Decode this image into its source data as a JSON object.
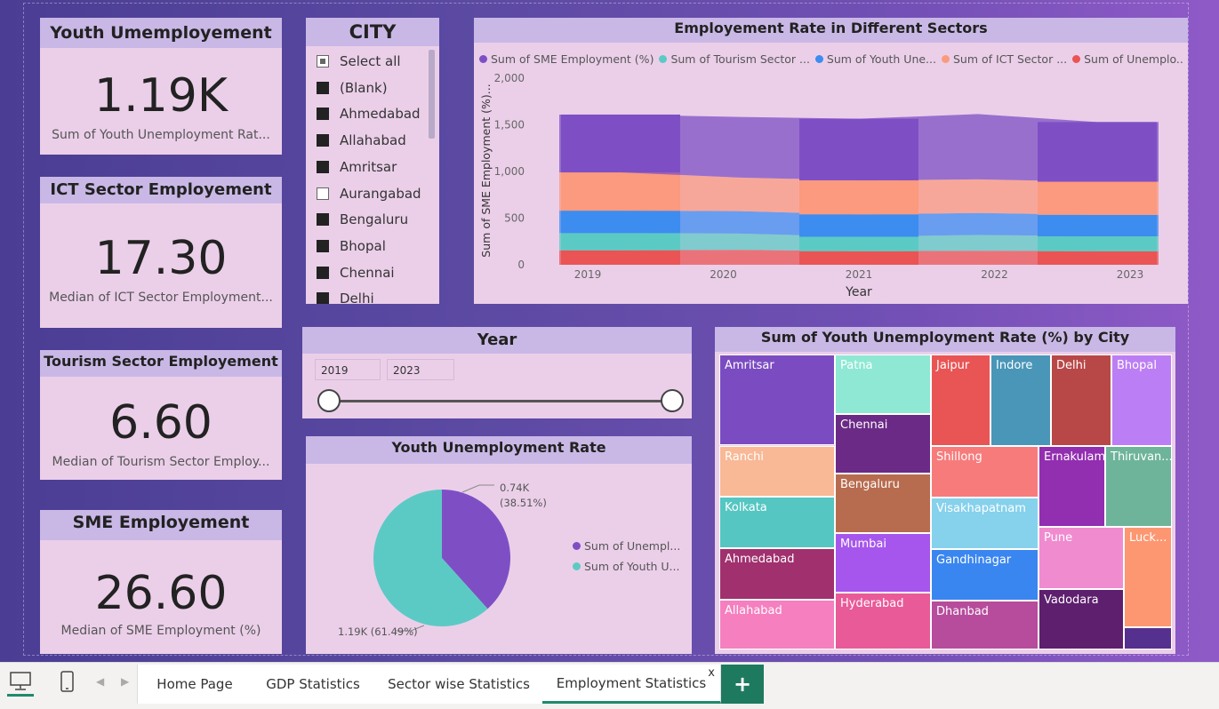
{
  "kpis": [
    {
      "title": "Youth Umemployement",
      "value": "1.19K",
      "subtitle": "Sum of Youth Unemployment Rat..."
    },
    {
      "title": "ICT Sector Employement",
      "value": "17.30",
      "subtitle": "Median of ICT Sector Employment..."
    },
    {
      "title": "Tourism Sector Employement",
      "value": "6.60",
      "subtitle": "Median of Tourism Sector Employ..."
    },
    {
      "title": "SME Employement",
      "value": "26.60",
      "subtitle": "Median of SME Employment (%)"
    }
  ],
  "city_slicer": {
    "title": "CITY",
    "items": [
      {
        "label": "Select all",
        "state": "partial"
      },
      {
        "label": "(Blank)",
        "state": "full"
      },
      {
        "label": "Ahmedabad",
        "state": "full"
      },
      {
        "label": "Allahabad",
        "state": "full"
      },
      {
        "label": "Amritsar",
        "state": "full"
      },
      {
        "label": "Aurangabad",
        "state": "empty"
      },
      {
        "label": "Bengaluru",
        "state": "full"
      },
      {
        "label": "Bhopal",
        "state": "full"
      },
      {
        "label": "Chennai",
        "state": "full"
      },
      {
        "label": "Delhi",
        "state": "full"
      }
    ]
  },
  "year_slicer": {
    "title": "Year",
    "from": "2019",
    "to": "2023"
  },
  "area_chart": {
    "title": "Employement Rate in Different Sectors",
    "legend": [
      {
        "name": "Sum of SME Employment (%)",
        "color": "#7e4fc4"
      },
      {
        "name": "Sum of Tourism Sector ...",
        "color": "#5ccac4"
      },
      {
        "name": "Sum of Youth Une...",
        "color": "#3d8cf0"
      },
      {
        "name": "Sum of ICT Sector ...",
        "color": "#fb9a7e"
      },
      {
        "name": "Sum of Unemplo...",
        "color": "#ea5454"
      }
    ],
    "ylabel": "Sum of SME Employment (%)...",
    "xlabel": "Year",
    "yticks": [
      "0",
      "500",
      "1,000",
      "1,500",
      "2,000"
    ],
    "xticks": [
      "2019",
      "2020",
      "2021",
      "2022",
      "2023"
    ]
  },
  "chart_data": [
    {
      "type": "area",
      "title": "Employement Rate in Different Sectors",
      "xlabel": "Year",
      "ylabel": "Sum of SME Employment (%)...",
      "x": [
        2019,
        2020,
        2021,
        2022,
        2023
      ],
      "ylim": [
        0,
        2000
      ],
      "stacked": true,
      "series": [
        {
          "name": "Sum of Unemplo...",
          "color": "#ea5454",
          "values": [
            155,
            160,
            145,
            150,
            145
          ]
        },
        {
          "name": "Sum of Tourism Sector ...",
          "color": "#5ccac4",
          "values": [
            185,
            175,
            155,
            170,
            160
          ]
        },
        {
          "name": "Sum of Youth Une...",
          "color": "#3d8cf0",
          "values": [
            240,
            240,
            240,
            235,
            230
          ]
        },
        {
          "name": "Sum of ICT Sector ...",
          "color": "#fb9a7e",
          "values": [
            410,
            360,
            365,
            360,
            355
          ]
        },
        {
          "name": "Sum of SME Employment (%)",
          "color": "#7e4fc4",
          "values": [
            620,
            650,
            660,
            700,
            640
          ]
        }
      ]
    },
    {
      "type": "pie",
      "title": "Youth Unemployment Rate",
      "slices": [
        {
          "name": "Sum of Unempl...",
          "value": 0.74,
          "label": "0.74K",
          "pct": "(38.51%)",
          "color": "#7e4fc4"
        },
        {
          "name": "Sum of Youth U...",
          "value": 1.19,
          "label": "1.19K (61.49%)",
          "pct": "",
          "color": "#5ccac4"
        }
      ]
    }
  ],
  "treemap": {
    "title": "Sum of Youth Unemployment Rate (%) by City",
    "cells": [
      {
        "name": "Amritsar",
        "color": "#7b4cc1"
      },
      {
        "name": "Ranchi",
        "color": "#f9b896"
      },
      {
        "name": "Kolkata",
        "color": "#55c6c2"
      },
      {
        "name": "Ahmedabad",
        "color": "#a0306e"
      },
      {
        "name": "Allahabad",
        "color": "#f57fbf"
      },
      {
        "name": "Patna",
        "color": "#8ee8d4"
      },
      {
        "name": "Chennai",
        "color": "#6b2a86"
      },
      {
        "name": "Bengaluru",
        "color": "#b86c4f"
      },
      {
        "name": "Mumbai",
        "color": "#a656ec"
      },
      {
        "name": "Hyderabad",
        "color": "#e95a98"
      },
      {
        "name": "Jaipur",
        "color": "#e95454"
      },
      {
        "name": "Indore",
        "color": "#4a96b8"
      },
      {
        "name": "Delhi",
        "color": "#b84848"
      },
      {
        "name": "Bhopal",
        "color": "#bc7ef4"
      },
      {
        "name": "Shillong",
        "color": "#f77b7b"
      },
      {
        "name": "Visakhapatnam",
        "color": "#86d1ec"
      },
      {
        "name": "Gandhinagar",
        "color": "#3a86f0"
      },
      {
        "name": "Dhanbad",
        "color": "#b74c9c"
      },
      {
        "name": "Ernakulam",
        "color": "#922eb0"
      },
      {
        "name": "Thiruvan...",
        "color": "#6eb49a"
      },
      {
        "name": "Pune",
        "color": "#f08bd0"
      },
      {
        "name": "Luck...",
        "color": "#fc9772"
      },
      {
        "name": "Vadodara",
        "color": "#5e1f6e"
      },
      {
        "name": "",
        "color": "#55308e"
      }
    ]
  },
  "tabs": [
    {
      "label": "Home Page"
    },
    {
      "label": "GDP Statistics"
    },
    {
      "label": "Sector wise Statistics"
    },
    {
      "label": "Employment Statistics"
    }
  ],
  "tab_close": "x",
  "add_tab": "+"
}
